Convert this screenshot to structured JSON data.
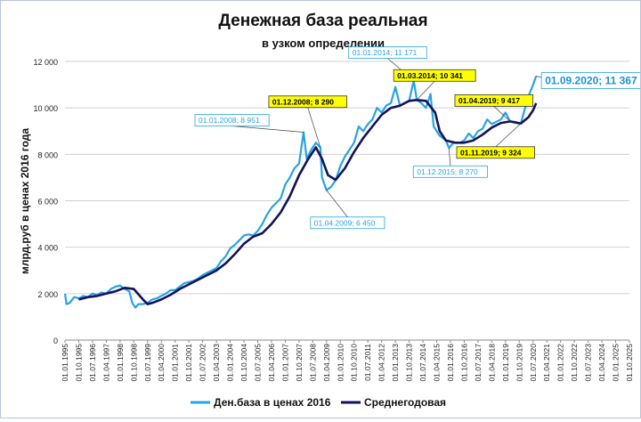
{
  "chart_data": {
    "type": "line",
    "title": "Денежная база реальная",
    "subtitle": "в узком определении",
    "ylabel": "млрд.руб  в ценах 2016 года",
    "xlabel": "",
    "ylim": [
      0,
      12000
    ],
    "xlim": [
      "1995-01",
      "2025-10"
    ],
    "grid": true,
    "legend_position": "bottom-center",
    "yticks": [
      {
        "value": 0,
        "label": "0"
      },
      {
        "value": 2000,
        "label": "2 000"
      },
      {
        "value": 4000,
        "label": "4 000"
      },
      {
        "value": 6000,
        "label": "6 000"
      },
      {
        "value": 8000,
        "label": "8 000"
      },
      {
        "value": 10000,
        "label": "10 000"
      },
      {
        "value": 12000,
        "label": "12 000"
      }
    ],
    "xtick_labels": [
      "01.01.1995",
      "01.10.1995",
      "01.07.1996",
      "01.04.1997",
      "01.01.1998",
      "01.10.1998",
      "01.07.1999",
      "01.04.2000",
      "01.01.2001",
      "01.10.2001",
      "01.07.2002",
      "01.04.2003",
      "01.01.2004",
      "01.10.2004",
      "01.07.2005",
      "01.04.2006",
      "01.01.2007",
      "01.10.2007",
      "01.07.2008",
      "01.04.2009",
      "01.01.2010",
      "01.10.2010",
      "01.07.2011",
      "01.04.2012",
      "01.01.2013",
      "01.10.2013",
      "01.07.2014",
      "01.04.2015",
      "01.01.2016",
      "01.10.2016",
      "01.07.2017",
      "01.04.2018",
      "01.01.2019",
      "01.10.2019",
      "01.07.2020",
      "01.04.2021",
      "01.01.2022",
      "01.10.2022",
      "01.07.2023",
      "01.04.2024",
      "01.01.2025",
      "01.10.2025"
    ],
    "series": [
      {
        "name": "Ден.база в ценах 2016",
        "color": "#29a3e0",
        "points": [
          [
            "1995-01",
            2000
          ],
          [
            "1995-02",
            1550
          ],
          [
            "1995-04",
            1600
          ],
          [
            "1995-07",
            1850
          ],
          [
            "1995-10",
            1800
          ],
          [
            "1996-01",
            1900
          ],
          [
            "1996-04",
            1850
          ],
          [
            "1996-07",
            2000
          ],
          [
            "1996-10",
            1950
          ],
          [
            "1997-01",
            2050
          ],
          [
            "1997-04",
            2000
          ],
          [
            "1997-07",
            2200
          ],
          [
            "1997-10",
            2300
          ],
          [
            "1998-01",
            2350
          ],
          [
            "1998-04",
            2200
          ],
          [
            "1998-07",
            2100
          ],
          [
            "1998-09",
            1600
          ],
          [
            "1998-11",
            1400
          ],
          [
            "1999-01",
            1550
          ],
          [
            "1999-04",
            1550
          ],
          [
            "1999-07",
            1600
          ],
          [
            "1999-10",
            1750
          ],
          [
            "2000-01",
            1800
          ],
          [
            "2000-04",
            1900
          ],
          [
            "2000-07",
            2000
          ],
          [
            "2000-10",
            2150
          ],
          [
            "2001-01",
            2150
          ],
          [
            "2001-04",
            2300
          ],
          [
            "2001-07",
            2450
          ],
          [
            "2001-10",
            2500
          ],
          [
            "2002-01",
            2550
          ],
          [
            "2002-04",
            2650
          ],
          [
            "2002-07",
            2800
          ],
          [
            "2002-10",
            2900
          ],
          [
            "2003-01",
            3000
          ],
          [
            "2003-04",
            3100
          ],
          [
            "2003-07",
            3400
          ],
          [
            "2003-10",
            3600
          ],
          [
            "2004-01",
            3950
          ],
          [
            "2004-04",
            4100
          ],
          [
            "2004-07",
            4300
          ],
          [
            "2004-10",
            4500
          ],
          [
            "2005-01",
            4550
          ],
          [
            "2005-04",
            4500
          ],
          [
            "2005-07",
            4700
          ],
          [
            "2005-10",
            5000
          ],
          [
            "2006-01",
            5400
          ],
          [
            "2006-04",
            5700
          ],
          [
            "2006-07",
            5900
          ],
          [
            "2006-10",
            6100
          ],
          [
            "2007-01",
            6700
          ],
          [
            "2007-04",
            7000
          ],
          [
            "2007-07",
            7400
          ],
          [
            "2007-10",
            7600
          ],
          [
            "2008-01",
            8951
          ],
          [
            "2008-03",
            7800
          ],
          [
            "2008-06",
            8200
          ],
          [
            "2008-09",
            8500
          ],
          [
            "2008-12",
            8290
          ],
          [
            "2009-01",
            7000
          ],
          [
            "2009-04",
            6450
          ],
          [
            "2009-07",
            6600
          ],
          [
            "2009-10",
            6900
          ],
          [
            "2010-01",
            7500
          ],
          [
            "2010-04",
            7900
          ],
          [
            "2010-07",
            8200
          ],
          [
            "2010-10",
            8500
          ],
          [
            "2011-01",
            9200
          ],
          [
            "2011-04",
            9000
          ],
          [
            "2011-07",
            9300
          ],
          [
            "2011-10",
            9500
          ],
          [
            "2012-01",
            10000
          ],
          [
            "2012-04",
            9800
          ],
          [
            "2012-07",
            10100
          ],
          [
            "2012-10",
            10200
          ],
          [
            "2013-01",
            10900
          ],
          [
            "2013-04",
            10100
          ],
          [
            "2013-07",
            10200
          ],
          [
            "2013-10",
            10300
          ],
          [
            "2014-01",
            11171
          ],
          [
            "2014-03",
            10341
          ],
          [
            "2014-06",
            10200
          ],
          [
            "2014-09",
            10000
          ],
          [
            "2014-12",
            10600
          ],
          [
            "2015-02",
            9200
          ],
          [
            "2015-06",
            8800
          ],
          [
            "2015-10",
            8600
          ],
          [
            "2015-12",
            8270
          ],
          [
            "2016-03",
            8500
          ],
          [
            "2016-07",
            8500
          ],
          [
            "2016-10",
            8600
          ],
          [
            "2017-01",
            8900
          ],
          [
            "2017-04",
            8700
          ],
          [
            "2017-07",
            9000
          ],
          [
            "2017-10",
            9100
          ],
          [
            "2018-01",
            9500
          ],
          [
            "2018-04",
            9300
          ],
          [
            "2018-07",
            9400
          ],
          [
            "2018-10",
            9500
          ],
          [
            "2019-01",
            9800
          ],
          [
            "2019-04",
            9417
          ],
          [
            "2019-07",
            9400
          ],
          [
            "2019-11",
            9324
          ],
          [
            "2020-01",
            9800
          ],
          [
            "2020-04",
            10500
          ],
          [
            "2020-07",
            11000
          ],
          [
            "2020-09",
            11367
          ]
        ]
      },
      {
        "name": "Среднегодовая",
        "color": "#121258",
        "points": [
          [
            "1995-10",
            1750
          ],
          [
            "1996-04",
            1850
          ],
          [
            "1996-10",
            1900
          ],
          [
            "1997-04",
            2000
          ],
          [
            "1997-10",
            2100
          ],
          [
            "1998-04",
            2250
          ],
          [
            "1998-10",
            2200
          ],
          [
            "1999-04",
            1750
          ],
          [
            "1999-07",
            1550
          ],
          [
            "1999-10",
            1600
          ],
          [
            "2000-04",
            1750
          ],
          [
            "2000-10",
            1950
          ],
          [
            "2001-04",
            2200
          ],
          [
            "2001-10",
            2400
          ],
          [
            "2002-04",
            2600
          ],
          [
            "2002-10",
            2800
          ],
          [
            "2003-04",
            3000
          ],
          [
            "2003-10",
            3300
          ],
          [
            "2004-04",
            3700
          ],
          [
            "2004-10",
            4150
          ],
          [
            "2005-04",
            4450
          ],
          [
            "2005-10",
            4600
          ],
          [
            "2006-04",
            5000
          ],
          [
            "2006-10",
            5500
          ],
          [
            "2007-04",
            6200
          ],
          [
            "2007-10",
            7100
          ],
          [
            "2008-04",
            7800
          ],
          [
            "2008-09",
            8300
          ],
          [
            "2009-01",
            7800
          ],
          [
            "2009-05",
            7100
          ],
          [
            "2009-10",
            6900
          ],
          [
            "2010-04",
            7400
          ],
          [
            "2010-10",
            8100
          ],
          [
            "2011-04",
            8700
          ],
          [
            "2011-10",
            9200
          ],
          [
            "2012-04",
            9700
          ],
          [
            "2012-10",
            10000
          ],
          [
            "2013-04",
            10100
          ],
          [
            "2013-10",
            10300
          ],
          [
            "2014-03",
            10341
          ],
          [
            "2014-09",
            10300
          ],
          [
            "2015-03",
            9800
          ],
          [
            "2015-06",
            9000
          ],
          [
            "2015-10",
            8600
          ],
          [
            "2016-04",
            8500
          ],
          [
            "2016-10",
            8500
          ],
          [
            "2017-04",
            8600
          ],
          [
            "2017-10",
            8850
          ],
          [
            "2018-04",
            9150
          ],
          [
            "2018-10",
            9350
          ],
          [
            "2019-04",
            9417
          ],
          [
            "2019-11",
            9324
          ],
          [
            "2020-04",
            9600
          ],
          [
            "2020-07",
            9900
          ],
          [
            "2020-09",
            10200
          ]
        ]
      }
    ],
    "annotations": [
      {
        "label": "01.01.2008; 8 951",
        "date": "2008-01",
        "value": 8951,
        "style": "outline"
      },
      {
        "label": "01.12.2008;  8 290",
        "date": "2008-12",
        "value": 8290,
        "style": "yellow"
      },
      {
        "label": "01.04.2009; 6 450",
        "date": "2009-04",
        "value": 6450,
        "style": "outline"
      },
      {
        "label": "01.01.2014; 11 171",
        "date": "2014-01",
        "value": 11171,
        "style": "outline"
      },
      {
        "label": "01.03.2014;  10 341",
        "date": "2014-03",
        "value": 10341,
        "style": "yellow"
      },
      {
        "label": "01.12.2015; 8 270",
        "date": "2015-12",
        "value": 8270,
        "style": "outline"
      },
      {
        "label": "01.04.2019;  9 417",
        "date": "2019-04",
        "value": 9417,
        "style": "yellow"
      },
      {
        "label": "01.11.2019;  9 324",
        "date": "2019-11",
        "value": 9324,
        "style": "yellow"
      },
      {
        "label": "01.09.2020; 11 367",
        "date": "2020-09",
        "value": 11367,
        "style": "big"
      }
    ]
  }
}
